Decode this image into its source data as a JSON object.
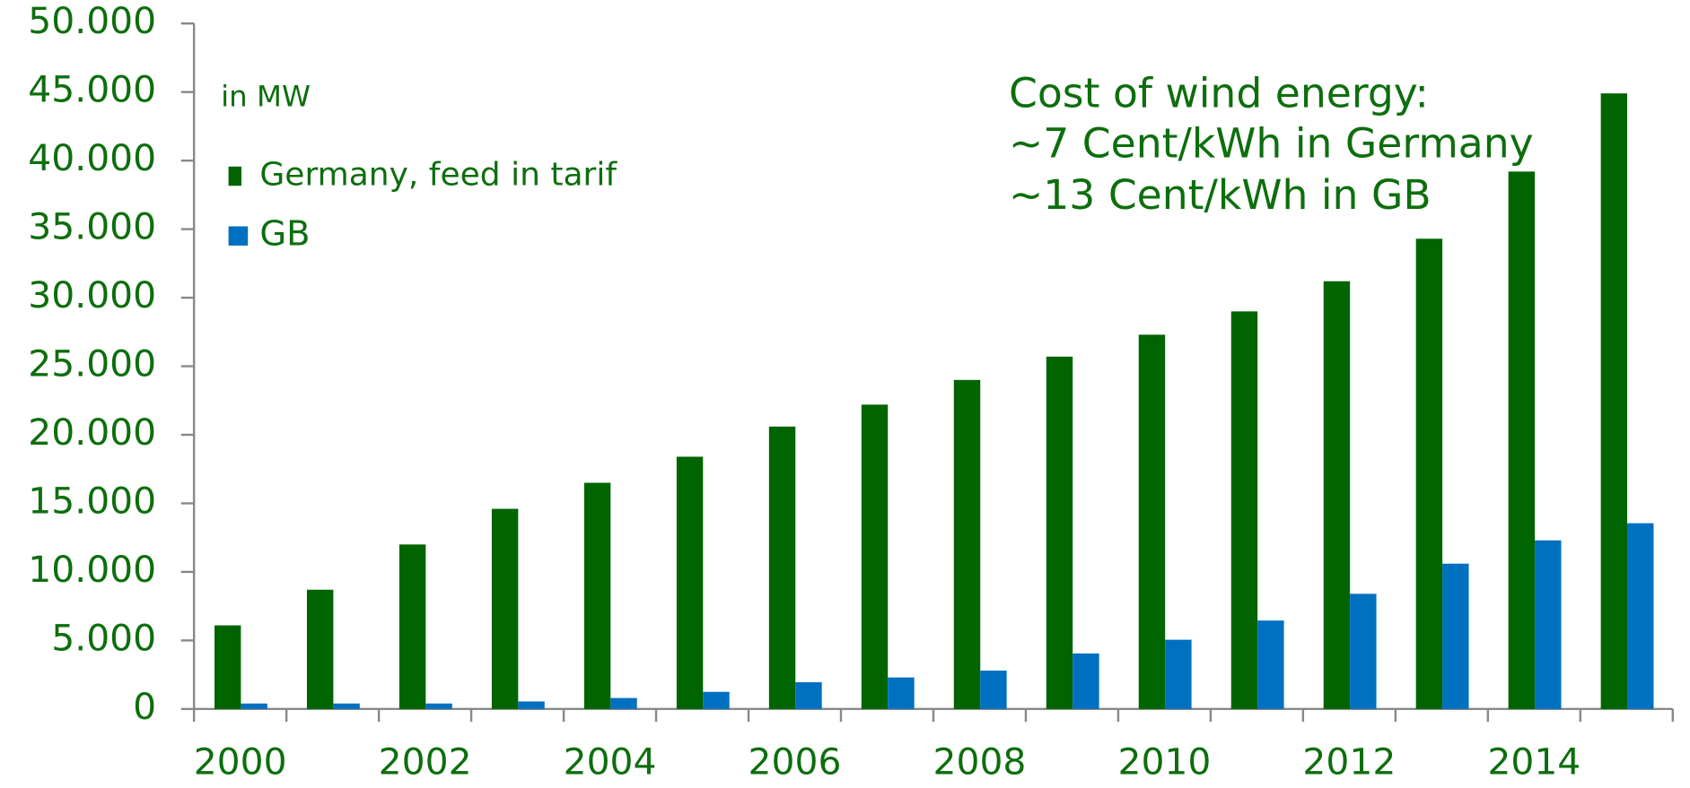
{
  "chart_data": {
    "type": "bar",
    "annotations": [
      "in MW",
      "Cost of wind energy:",
      "~7 Cent/kWh in Germany",
      "~13 Cent/kWh in GB"
    ],
    "categories": [
      "2000",
      null,
      "2002",
      null,
      "2004",
      null,
      "2006",
      null,
      "2008",
      null,
      "2010",
      null,
      "2012",
      null,
      "2014",
      null
    ],
    "series": [
      {
        "name": "Germany, feed in tarif",
        "color": "#006400",
        "values": [
          6100,
          8700,
          12000,
          14600,
          16500,
          18400,
          20600,
          22200,
          24000,
          25700,
          27300,
          29000,
          31200,
          34300,
          39200,
          44900
        ]
      },
      {
        "name": "GB",
        "color": "#0070c0",
        "values": [
          400,
          400,
          400,
          550,
          800,
          1250,
          1950,
          2300,
          2800,
          4050,
          5050,
          6450,
          8400,
          10600,
          12300,
          13550
        ]
      }
    ],
    "ylim": [
      0,
      50000
    ],
    "yticks": [
      0,
      {
        "value": 5000,
        "label": "5.000"
      },
      {
        "value": 10000,
        "label": "10.000"
      },
      {
        "value": 15000,
        "label": "15.000"
      },
      {
        "value": 20000,
        "label": "20.000"
      },
      {
        "value": 25000,
        "label": "25.000"
      },
      {
        "value": 30000,
        "label": "30.000"
      },
      {
        "value": 35000,
        "label": "35.000"
      },
      {
        "value": 40000,
        "label": "40.000"
      },
      {
        "value": 45000,
        "label": "45.000"
      },
      {
        "value": 50000,
        "label": "50.000"
      }
    ],
    "legend": "upper left"
  }
}
